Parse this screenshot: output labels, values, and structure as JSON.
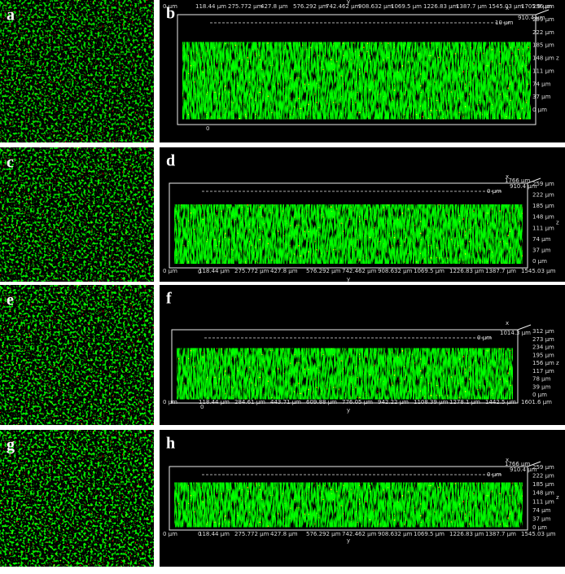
{
  "panels": [
    {
      "left_label": "a",
      "right_label": "b",
      "x_axis_side": "top",
      "axis_y": "y",
      "axis_z": "z",
      "axis_x": "x",
      "origin": "0",
      "extent_label": "910.4 µm",
      "inner_label": "10 µm",
      "x_ticks": [
        "0 µm",
        "118.44 µm",
        "275.772 µm",
        "427.8 µm",
        "576.292 µm",
        "742.462 µm",
        "908.632 µm",
        "1069.5 µm",
        "1226.83 µm",
        "1387.7 µm",
        "1545.03 µm",
        "1705.9 µm"
      ],
      "z_ticks": [
        "296 µm",
        "259 µm",
        "222 µm",
        "185 µm",
        "148 µm",
        "111 µm",
        "74 µm",
        "37 µm",
        "0 µm"
      ]
    },
    {
      "left_label": "c",
      "right_label": "d",
      "x_axis_side": "bottom",
      "axis_y": "y",
      "axis_z": "z",
      "axis_x": "x",
      "origin": "0",
      "extent_label": "910.4 µm",
      "inner_label": "0 µm",
      "depth_label": "1766 µm",
      "x_ticks": [
        "0 µm",
        "118.44 µm",
        "275.772 µm",
        "427.8 µm",
        "576.292 µm",
        "742.462 µm",
        "908.632 µm",
        "1069.5 µm",
        "1226.83 µm",
        "1387.7 µm",
        "1545.03 µm"
      ],
      "z_ticks": [
        "259 µm",
        "222 µm",
        "185 µm",
        "148 µm",
        "111 µm",
        "74 µm",
        "37 µm",
        "0 µm"
      ]
    },
    {
      "left_label": "e",
      "right_label": "f",
      "x_axis_side": "bottom",
      "axis_y": "y",
      "axis_z": "z",
      "axis_x": "x",
      "origin": "0",
      "extent_label": "1014.3 µm",
      "inner_label": "0 µm",
      "x_ticks": [
        "0 µm",
        "118.44 µm",
        "284.61 µm",
        "443.71 µm",
        "609.88 µm",
        "776.05 µm",
        "942.22 µm",
        "1108.39 µm",
        "1278.1 µm",
        "1442.5 µm",
        "1601.6 µm"
      ],
      "z_ticks": [
        "312 µm",
        "273 µm",
        "234 µm",
        "195 µm",
        "156 µm",
        "117 µm",
        "78 µm",
        "39 µm",
        "0 µm"
      ]
    },
    {
      "left_label": "g",
      "right_label": "h",
      "x_axis_side": "bottom",
      "axis_y": "y",
      "axis_z": "z",
      "axis_x": "x",
      "origin": "0",
      "extent_label": "910.4 µm",
      "inner_label": "0 µm",
      "depth_label": "1766 µm",
      "x_ticks": [
        "0 µm",
        "118.44 µm",
        "275.772 µm",
        "427.8 µm",
        "576.292 µm",
        "742.462 µm",
        "908.632 µm",
        "1069.5 µm",
        "1226.83 µm",
        "1387.7 µm",
        "1545.03 µm"
      ],
      "z_ticks": [
        "259 µm",
        "222 µm",
        "185 µm",
        "148 µm",
        "111 µm",
        "74 µm",
        "37 µm",
        "0 µm"
      ]
    }
  ]
}
